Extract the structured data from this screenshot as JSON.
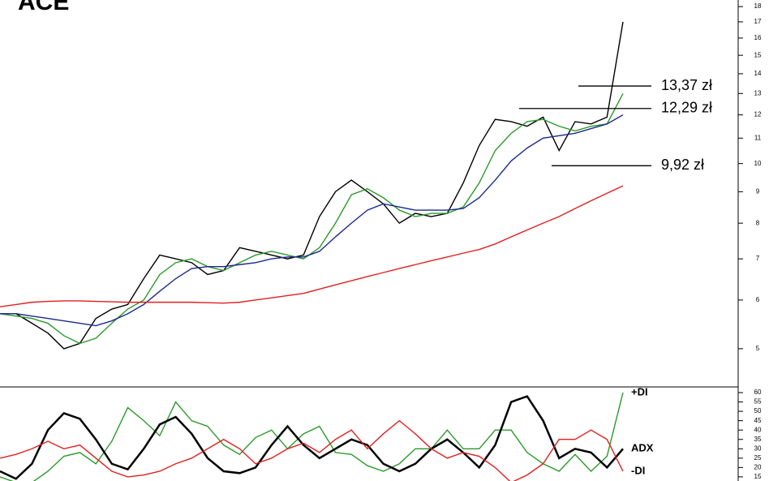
{
  "chart_data": [
    {
      "type": "line",
      "title": "ACE",
      "log_scale": true,
      "categories": [
        null,
        null,
        null,
        null,
        null,
        null,
        null,
        null,
        null,
        null,
        null,
        null,
        null,
        null,
        null,
        null,
        null,
        null,
        null,
        null,
        null,
        null,
        null,
        null,
        null,
        null,
        null,
        null,
        null,
        null,
        null,
        null,
        null,
        null,
        null,
        null,
        null,
        null,
        null,
        null
      ],
      "series": [
        {
          "color": "#000000",
          "values": [
            5.7,
            5.7,
            5.5,
            5.3,
            5.0,
            5.1,
            5.6,
            5.8,
            5.9,
            6.5,
            7.1,
            7.0,
            6.9,
            6.6,
            6.7,
            7.3,
            7.2,
            7.1,
            7.0,
            7.1,
            8.2,
            9.0,
            9.4,
            9.0,
            8.6,
            8.0,
            8.3,
            8.2,
            8.3,
            9.3,
            10.7,
            11.8,
            11.7,
            11.5,
            11.9,
            10.5,
            11.7,
            11.6,
            11.9,
            17.0
          ]
        },
        {
          "color": "#2a9a2a",
          "values": [
            5.7,
            5.65,
            5.6,
            5.5,
            5.25,
            5.1,
            5.2,
            5.5,
            5.8,
            6.0,
            6.6,
            6.9,
            7.0,
            6.8,
            6.7,
            6.9,
            7.1,
            7.2,
            7.1,
            7.0,
            7.3,
            8.0,
            8.9,
            9.1,
            8.8,
            8.4,
            8.2,
            8.3,
            8.3,
            8.5,
            9.3,
            10.5,
            11.2,
            11.7,
            11.8,
            11.5,
            11.3,
            11.5,
            11.6,
            13.0
          ]
        },
        {
          "color": "#1c2a8c",
          "values": [
            5.7,
            5.7,
            5.65,
            5.6,
            5.55,
            5.5,
            5.45,
            5.55,
            5.7,
            5.9,
            6.2,
            6.5,
            6.75,
            6.8,
            6.8,
            6.85,
            6.9,
            7.0,
            7.05,
            7.05,
            7.2,
            7.6,
            8.0,
            8.4,
            8.6,
            8.5,
            8.4,
            8.4,
            8.4,
            8.45,
            8.8,
            9.4,
            10.1,
            10.6,
            11.0,
            11.1,
            11.2,
            11.4,
            11.6,
            12.0
          ]
        },
        {
          "color": "#e02020",
          "values": [
            5.85,
            5.9,
            5.95,
            5.97,
            5.98,
            5.98,
            5.97,
            5.96,
            5.95,
            5.95,
            5.95,
            5.95,
            5.95,
            5.94,
            5.93,
            5.95,
            6.0,
            6.05,
            6.1,
            6.15,
            6.25,
            6.35,
            6.45,
            6.55,
            6.65,
            6.75,
            6.85,
            6.95,
            7.05,
            7.15,
            7.25,
            7.4,
            7.6,
            7.8,
            8.0,
            8.2,
            8.45,
            8.7,
            8.95,
            9.2
          ]
        }
      ],
      "levels": [
        {
          "value": 13.37,
          "label": "13,37 zł"
        },
        {
          "value": 12.29,
          "label": "12,29 zł"
        },
        {
          "value": 9.92,
          "label": "9,92 zł"
        }
      ],
      "ylim": [
        4.36,
        18.45
      ],
      "yticks": [
        5,
        6,
        7,
        8,
        9,
        10,
        11,
        12,
        13,
        14,
        15,
        16,
        17,
        18
      ]
    },
    {
      "type": "line",
      "categories": [
        null,
        null,
        null,
        null,
        null,
        null,
        null,
        null,
        null,
        null,
        null,
        null,
        null,
        null,
        null,
        null,
        null,
        null,
        null,
        null,
        null,
        null,
        null,
        null,
        null,
        null,
        null,
        null,
        null,
        null,
        null,
        null,
        null,
        null,
        null,
        null,
        null,
        null,
        null,
        null
      ],
      "series": [
        {
          "name": "+DI",
          "color": "#2a9a2a",
          "values": [
            15,
            12,
            12,
            18,
            26,
            28,
            22,
            34,
            52,
            45,
            37,
            55,
            45,
            42,
            32,
            27,
            36,
            40,
            30,
            38,
            42,
            28,
            27,
            21,
            18,
            22,
            30,
            30,
            40,
            30,
            30,
            40,
            40,
            28,
            22,
            18,
            27,
            18,
            26,
            60
          ]
        },
        {
          "name": "ADX",
          "color": "#000000",
          "values": [
            18,
            14,
            22,
            40,
            49,
            46,
            35,
            22,
            19,
            30,
            43,
            47,
            38,
            25,
            18,
            17,
            20,
            32,
            42,
            32,
            25,
            30,
            35,
            32,
            22,
            18,
            22,
            30,
            35,
            28,
            20,
            32,
            55,
            58,
            45,
            25,
            30,
            28,
            20,
            30
          ]
        },
        {
          "name": "-DI",
          "color": "#e02020",
          "values": [
            25,
            27,
            30,
            34,
            30,
            32,
            25,
            18,
            15,
            16,
            18,
            22,
            25,
            30,
            35,
            30,
            22,
            25,
            30,
            33,
            28,
            35,
            40,
            30,
            38,
            45,
            38,
            30,
            25,
            28,
            26,
            20,
            12,
            16,
            22,
            35,
            35,
            40,
            35,
            18
          ]
        }
      ],
      "ylim": [
        12.8,
        62.6
      ],
      "yticks": [
        15,
        20,
        25,
        30,
        35,
        40,
        45,
        50,
        55,
        60
      ]
    }
  ]
}
